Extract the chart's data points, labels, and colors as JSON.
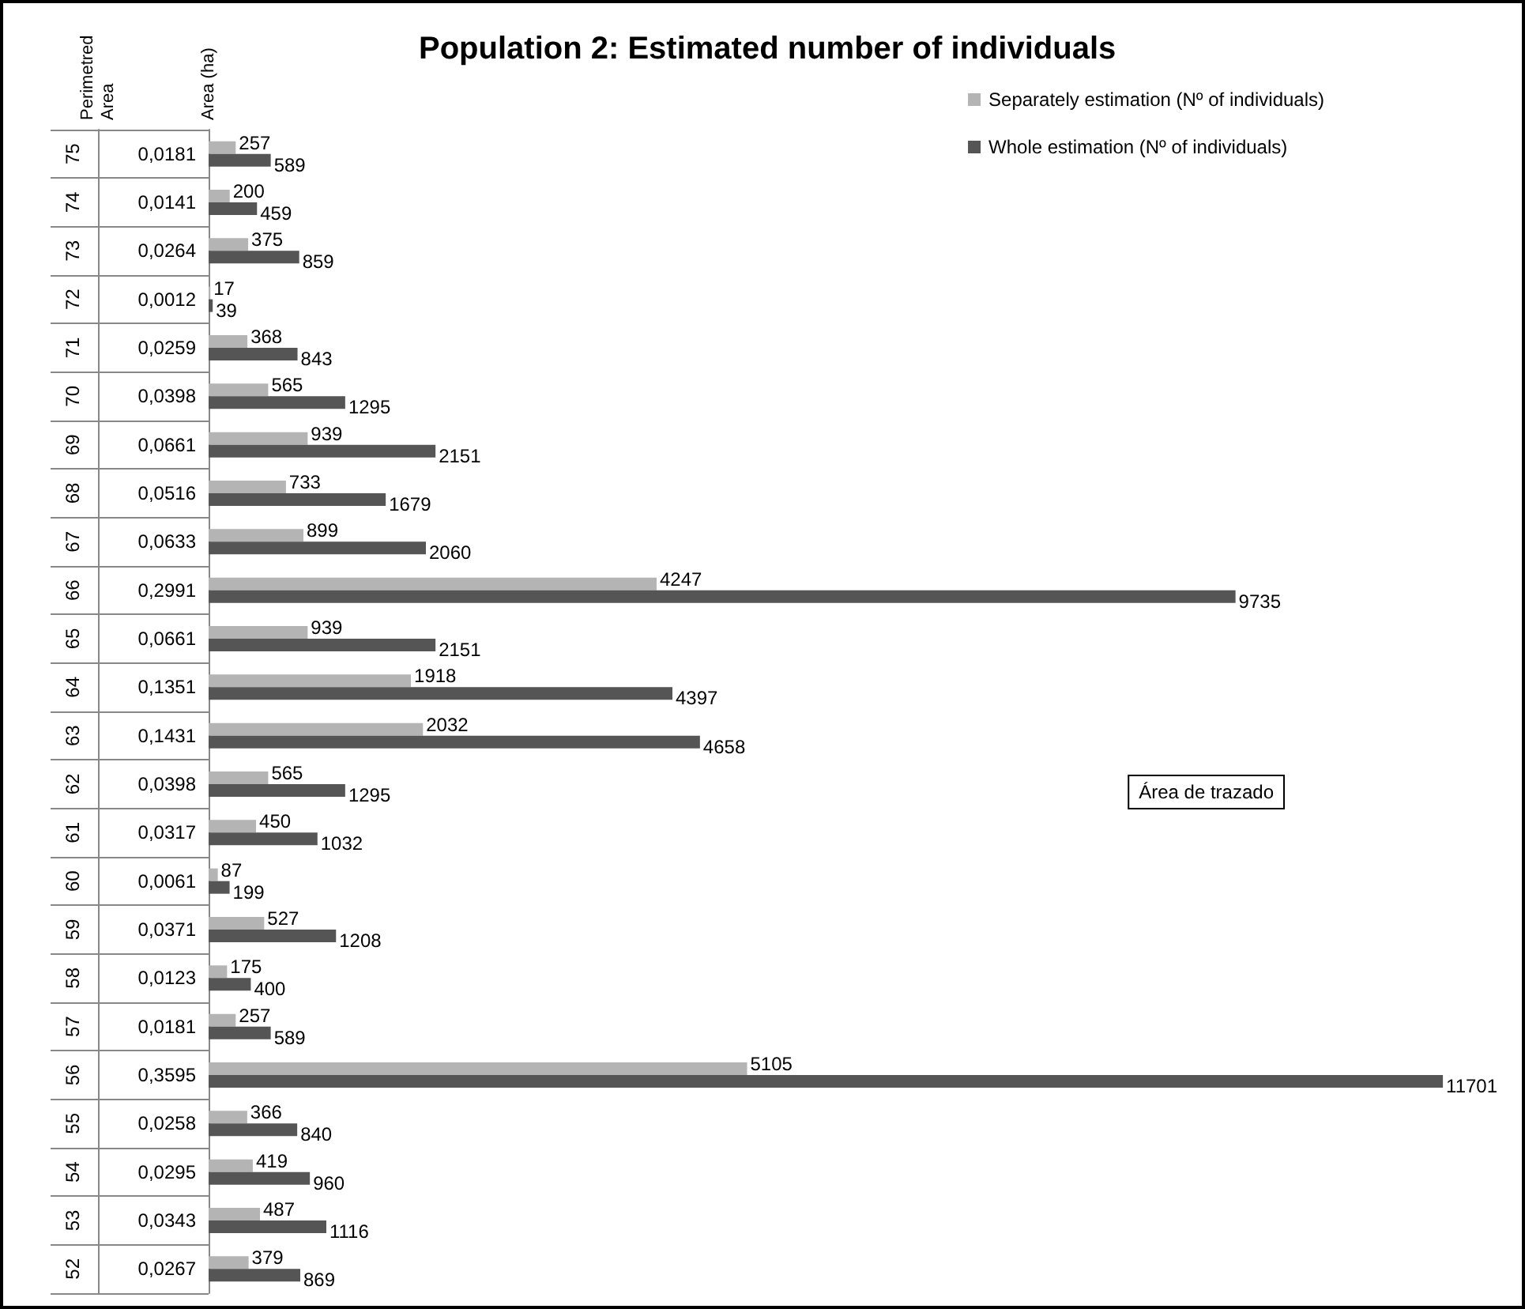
{
  "chart_data": {
    "type": "bar",
    "orientation": "horizontal",
    "title": "Population 2: Estimated number of individuals",
    "ylabel": "Perimetred\nArea",
    "y2label": "Area (ha)",
    "categories": [
      "75",
      "74",
      "73",
      "72",
      "71",
      "70",
      "69",
      "68",
      "67",
      "66",
      "65",
      "64",
      "63",
      "62",
      "61",
      "60",
      "59",
      "58",
      "57",
      "56",
      "55",
      "54",
      "53",
      "52"
    ],
    "y2_categories": [
      "0,0181",
      "0,0141",
      "0,0264",
      "0,0012",
      "0,0259",
      "0,0398",
      "0,0661",
      "0,0516",
      "0,0633",
      "0,2991",
      "0,0661",
      "0,1351",
      "0,1431",
      "0,0398",
      "0,0317",
      "0,0061",
      "0,0371",
      "0,0123",
      "0,0181",
      "0,3595",
      "0,0258",
      "0,0295",
      "0,0343",
      "0,0267"
    ],
    "series": [
      {
        "name": "Separately estimation (Nº of individuals)",
        "color": "#b4b4b4",
        "values": [
          257,
          200,
          375,
          17,
          368,
          565,
          939,
          733,
          899,
          4247,
          939,
          1918,
          2032,
          565,
          450,
          87,
          527,
          175,
          257,
          5105,
          366,
          419,
          487,
          379
        ]
      },
      {
        "name": "Whole estimation (Nº of individuals)",
        "color": "#555555",
        "values": [
          589,
          459,
          859,
          39,
          843,
          1295,
          2151,
          1679,
          2060,
          9735,
          2151,
          4397,
          4658,
          1295,
          1032,
          199,
          1208,
          400,
          589,
          11701,
          840,
          960,
          1116,
          869
        ]
      }
    ],
    "data_labels": true,
    "legend": "top right",
    "grid": false,
    "annotations": [
      "Área de trazado"
    ]
  }
}
